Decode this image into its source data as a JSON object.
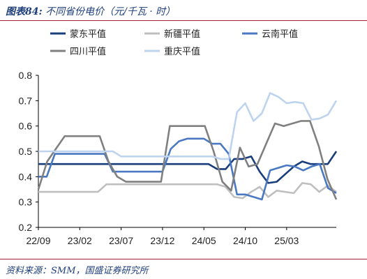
{
  "header": {
    "fig_label": "图表84:",
    "title": "不同省份电价（元/千瓦 · 时）"
  },
  "footer": {
    "source": "资料来源：SMM，国盛证券研究所"
  },
  "chart_data": {
    "type": "line",
    "title": "不同省份电价（元/千瓦 · 时）",
    "xlabel": "",
    "ylabel": "",
    "ylim": [
      0.2,
      0.8
    ],
    "yticks": [
      "0.2",
      "0.3",
      "0.4",
      "0.5",
      "0.6",
      "0.7",
      "0.8"
    ],
    "xticks": [
      "22/09",
      "23/02",
      "23/07",
      "23/12",
      "24/05",
      "24/10",
      "25/03"
    ],
    "x_start": "2022-09",
    "grid": false,
    "legend_position": "top",
    "series": [
      {
        "name": "蒙东平值",
        "color": "#1a3d7c",
        "values": [
          0.45,
          0.45,
          0.45,
          0.45,
          0.45,
          0.45,
          0.45,
          0.45,
          0.45,
          0.45,
          0.45,
          0.45,
          0.45,
          0.45,
          0.45,
          0.45,
          0.45,
          0.45,
          0.45,
          0.45,
          0.45,
          0.43,
          0.43,
          0.47,
          0.47,
          0.48,
          0.42,
          0.375,
          0.38,
          0.41,
          0.44,
          0.46,
          0.45,
          0.45,
          0.45,
          0.5
        ]
      },
      {
        "name": "新疆平值",
        "color": "#bfbfbf",
        "values": [
          0.34,
          0.34,
          0.34,
          0.34,
          0.34,
          0.34,
          0.34,
          0.34,
          0.37,
          0.37,
          0.37,
          0.37,
          0.37,
          0.37,
          0.37,
          0.37,
          0.37,
          0.37,
          0.37,
          0.37,
          0.37,
          0.37,
          0.36,
          0.32,
          0.315,
          0.34,
          0.36,
          0.32,
          0.345,
          0.34,
          0.335,
          0.375,
          0.37,
          0.34,
          0.365,
          0.34
        ]
      },
      {
        "name": "云南平值",
        "color": "#4a78c2",
        "values": [
          0.4,
          0.4,
          0.49,
          0.49,
          0.49,
          0.49,
          0.49,
          0.49,
          0.49,
          0.42,
          0.42,
          0.42,
          0.42,
          0.42,
          0.42,
          0.42,
          0.51,
          0.54,
          0.55,
          0.55,
          0.55,
          0.53,
          0.53,
          0.49,
          0.33,
          0.33,
          0.32,
          0.31,
          0.425,
          0.435,
          0.445,
          0.44,
          0.425,
          0.44,
          0.45,
          0.355,
          0.335
        ]
      },
      {
        "name": "四川平值",
        "color": "#808080",
        "values": [
          0.35,
          0.46,
          0.51,
          0.56,
          0.56,
          0.56,
          0.56,
          0.56,
          0.46,
          0.4,
          0.38,
          0.38,
          0.38,
          0.38,
          0.38,
          0.6,
          0.6,
          0.6,
          0.6,
          0.6,
          0.5,
          0.38,
          0.345,
          0.515,
          0.44,
          0.45,
          0.53,
          0.61,
          0.6,
          0.61,
          0.62,
          0.62,
          0.52,
          0.39,
          0.31
        ]
      },
      {
        "name": "重庆平值",
        "color": "#bdd3ee",
        "values": [
          0.5,
          0.5,
          0.5,
          0.5,
          0.5,
          0.5,
          0.5,
          0.5,
          0.5,
          0.5,
          0.48,
          0.48,
          0.48,
          0.48,
          0.48,
          0.48,
          0.48,
          0.48,
          0.48,
          0.48,
          0.48,
          0.48,
          0.47,
          0.47,
          0.655,
          0.69,
          0.62,
          0.65,
          0.73,
          0.715,
          0.69,
          0.695,
          0.69,
          0.625,
          0.63,
          0.645,
          0.7
        ]
      }
    ]
  }
}
